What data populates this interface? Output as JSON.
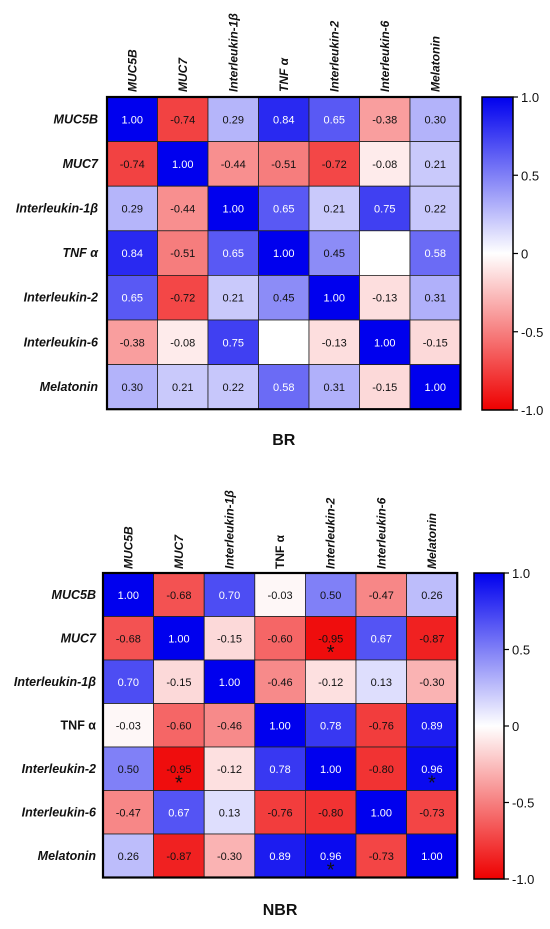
{
  "chart_data": [
    {
      "type": "heatmap",
      "title": "BR",
      "columns": [
        "MUC5B",
        "MUC7",
        "Interleukin-1β",
        "TNF α",
        "Interleukin-2",
        "Interleukin-6",
        "Melatonin"
      ],
      "rows": [
        "MUC5B",
        "MUC7",
        "Interleukin-1β",
        "TNF α",
        "Interleukin-2",
        "Interleukin-6",
        "Melatonin"
      ],
      "values": [
        [
          "1.00",
          "-0.74",
          "0.29",
          "0.84",
          "0.65",
          "-0.38",
          "0.30"
        ],
        [
          "-0.74",
          "1.00",
          "-0.44",
          "-0.51",
          "-0.72",
          "-0.08",
          "0.21"
        ],
        [
          "0.29",
          "-0.44",
          "1.00",
          "0.65",
          "0.21",
          "0.75",
          "0.22"
        ],
        [
          "0.84",
          "-0.51",
          "0.65",
          "1.00",
          "0.45",
          "",
          "0.58"
        ],
        [
          "0.65",
          "-0.72",
          "0.21",
          "0.45",
          "1.00",
          "-0.13",
          "0.31"
        ],
        [
          "-0.38",
          "-0.08",
          "0.75",
          "",
          "-0.13",
          "1.00",
          "-0.15"
        ],
        [
          "0.30",
          "0.21",
          "0.22",
          "0.58",
          "0.31",
          "-0.15",
          "1.00"
        ]
      ],
      "significant": [],
      "colorbar": {
        "ticks": [
          "1.0",
          "0.5",
          "0",
          "-0.5",
          "-1.0"
        ],
        "range": [
          -1,
          1
        ]
      },
      "colors": {
        "positive": "#0000ee",
        "zero": "#ffffff",
        "negative": "#ee0000"
      }
    },
    {
      "type": "heatmap",
      "title": "NBR",
      "columns": [
        "MUC5B",
        "MUC7",
        "Interleukin-1β",
        "TNF α",
        "Interleukin-2",
        "Interleukin-6",
        "Melatonin"
      ],
      "rows": [
        "MUC5B",
        "MUC7",
        "Interleukin-1β",
        "TNF α",
        "Interleukin-2",
        "Interleukin-6",
        "Melatonin"
      ],
      "values": [
        [
          "1.00",
          "-0.68",
          "0.70",
          "-0.03",
          "0.50",
          "-0.47",
          "0.26"
        ],
        [
          "-0.68",
          "1.00",
          "-0.15",
          "-0.60",
          "-0.95",
          "0.67",
          "-0.87"
        ],
        [
          "0.70",
          "-0.15",
          "1.00",
          "-0.46",
          "-0.12",
          "0.13",
          "-0.30"
        ],
        [
          "-0.03",
          "-0.60",
          "-0.46",
          "1.00",
          "0.78",
          "-0.76",
          "0.89"
        ],
        [
          "0.50",
          "-0.95",
          "-0.12",
          "0.78",
          "1.00",
          "-0.80",
          "0.96"
        ],
        [
          "-0.47",
          "0.67",
          "0.13",
          "-0.76",
          "-0.80",
          "1.00",
          "-0.73"
        ],
        [
          "0.26",
          "-0.87",
          "-0.30",
          "0.89",
          "0.96",
          "-0.73",
          "1.00"
        ]
      ],
      "significant": [
        [
          1,
          4
        ],
        [
          4,
          1
        ],
        [
          4,
          6
        ],
        [
          6,
          4
        ]
      ],
      "significance_symbol": "*",
      "colorbar": {
        "ticks": [
          "1.0",
          "0.5",
          "0",
          "-0.5",
          "-1.0"
        ],
        "range": [
          -1,
          1
        ]
      },
      "colors": {
        "positive": "#0000ee",
        "zero": "#ffffff",
        "negative": "#ee0000"
      }
    }
  ]
}
